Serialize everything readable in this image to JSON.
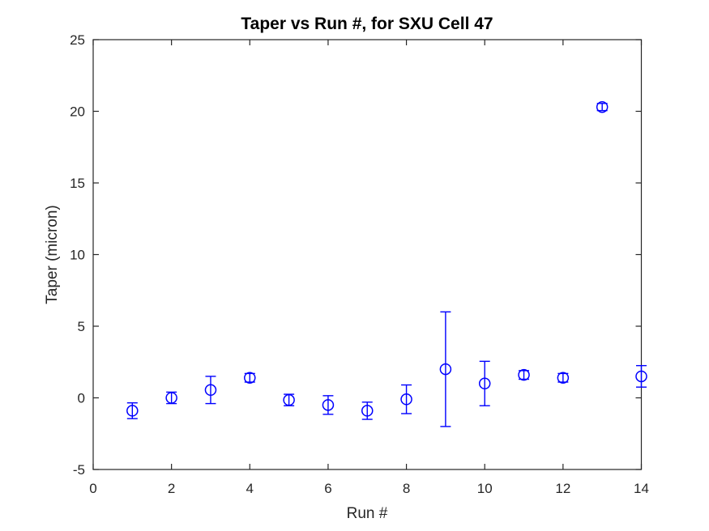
{
  "chart_data": {
    "type": "scatter",
    "subtype": "errorbar",
    "title": "Taper vs Run #, for SXU Cell 47",
    "xlabel": "Run #",
    "ylabel": "Taper (micron)",
    "xlim": [
      0,
      14
    ],
    "ylim": [
      -5,
      25
    ],
    "xticks": [
      0,
      2,
      4,
      6,
      8,
      10,
      12,
      14
    ],
    "yticks": [
      -5,
      0,
      5,
      10,
      15,
      20,
      25
    ],
    "grid": false,
    "legend": "none",
    "marker": "open-circle",
    "series_color": "#0000FF",
    "axis_color": "#262626",
    "background_color": "#FFFFFF",
    "points": [
      {
        "x": 1,
        "y": -0.9,
        "yerr": 0.55
      },
      {
        "x": 2,
        "y": 0.0,
        "yerr": 0.4
      },
      {
        "x": 3,
        "y": 0.55,
        "yerr": 0.95
      },
      {
        "x": 4,
        "y": 1.4,
        "yerr": 0.3
      },
      {
        "x": 5,
        "y": -0.15,
        "yerr": 0.4
      },
      {
        "x": 6,
        "y": -0.5,
        "yerr": 0.65
      },
      {
        "x": 7,
        "y": -0.9,
        "yerr": 0.6
      },
      {
        "x": 8,
        "y": -0.1,
        "yerr": 1.0
      },
      {
        "x": 9,
        "y": 2.0,
        "yerr": 4.0
      },
      {
        "x": 10,
        "y": 1.0,
        "yerr": 1.55
      },
      {
        "x": 11,
        "y": 1.6,
        "yerr": 0.3
      },
      {
        "x": 12,
        "y": 1.4,
        "yerr": 0.3
      },
      {
        "x": 13,
        "y": 20.3,
        "yerr": 0.25
      },
      {
        "x": 14,
        "y": 1.5,
        "yerr": 0.75
      }
    ]
  }
}
